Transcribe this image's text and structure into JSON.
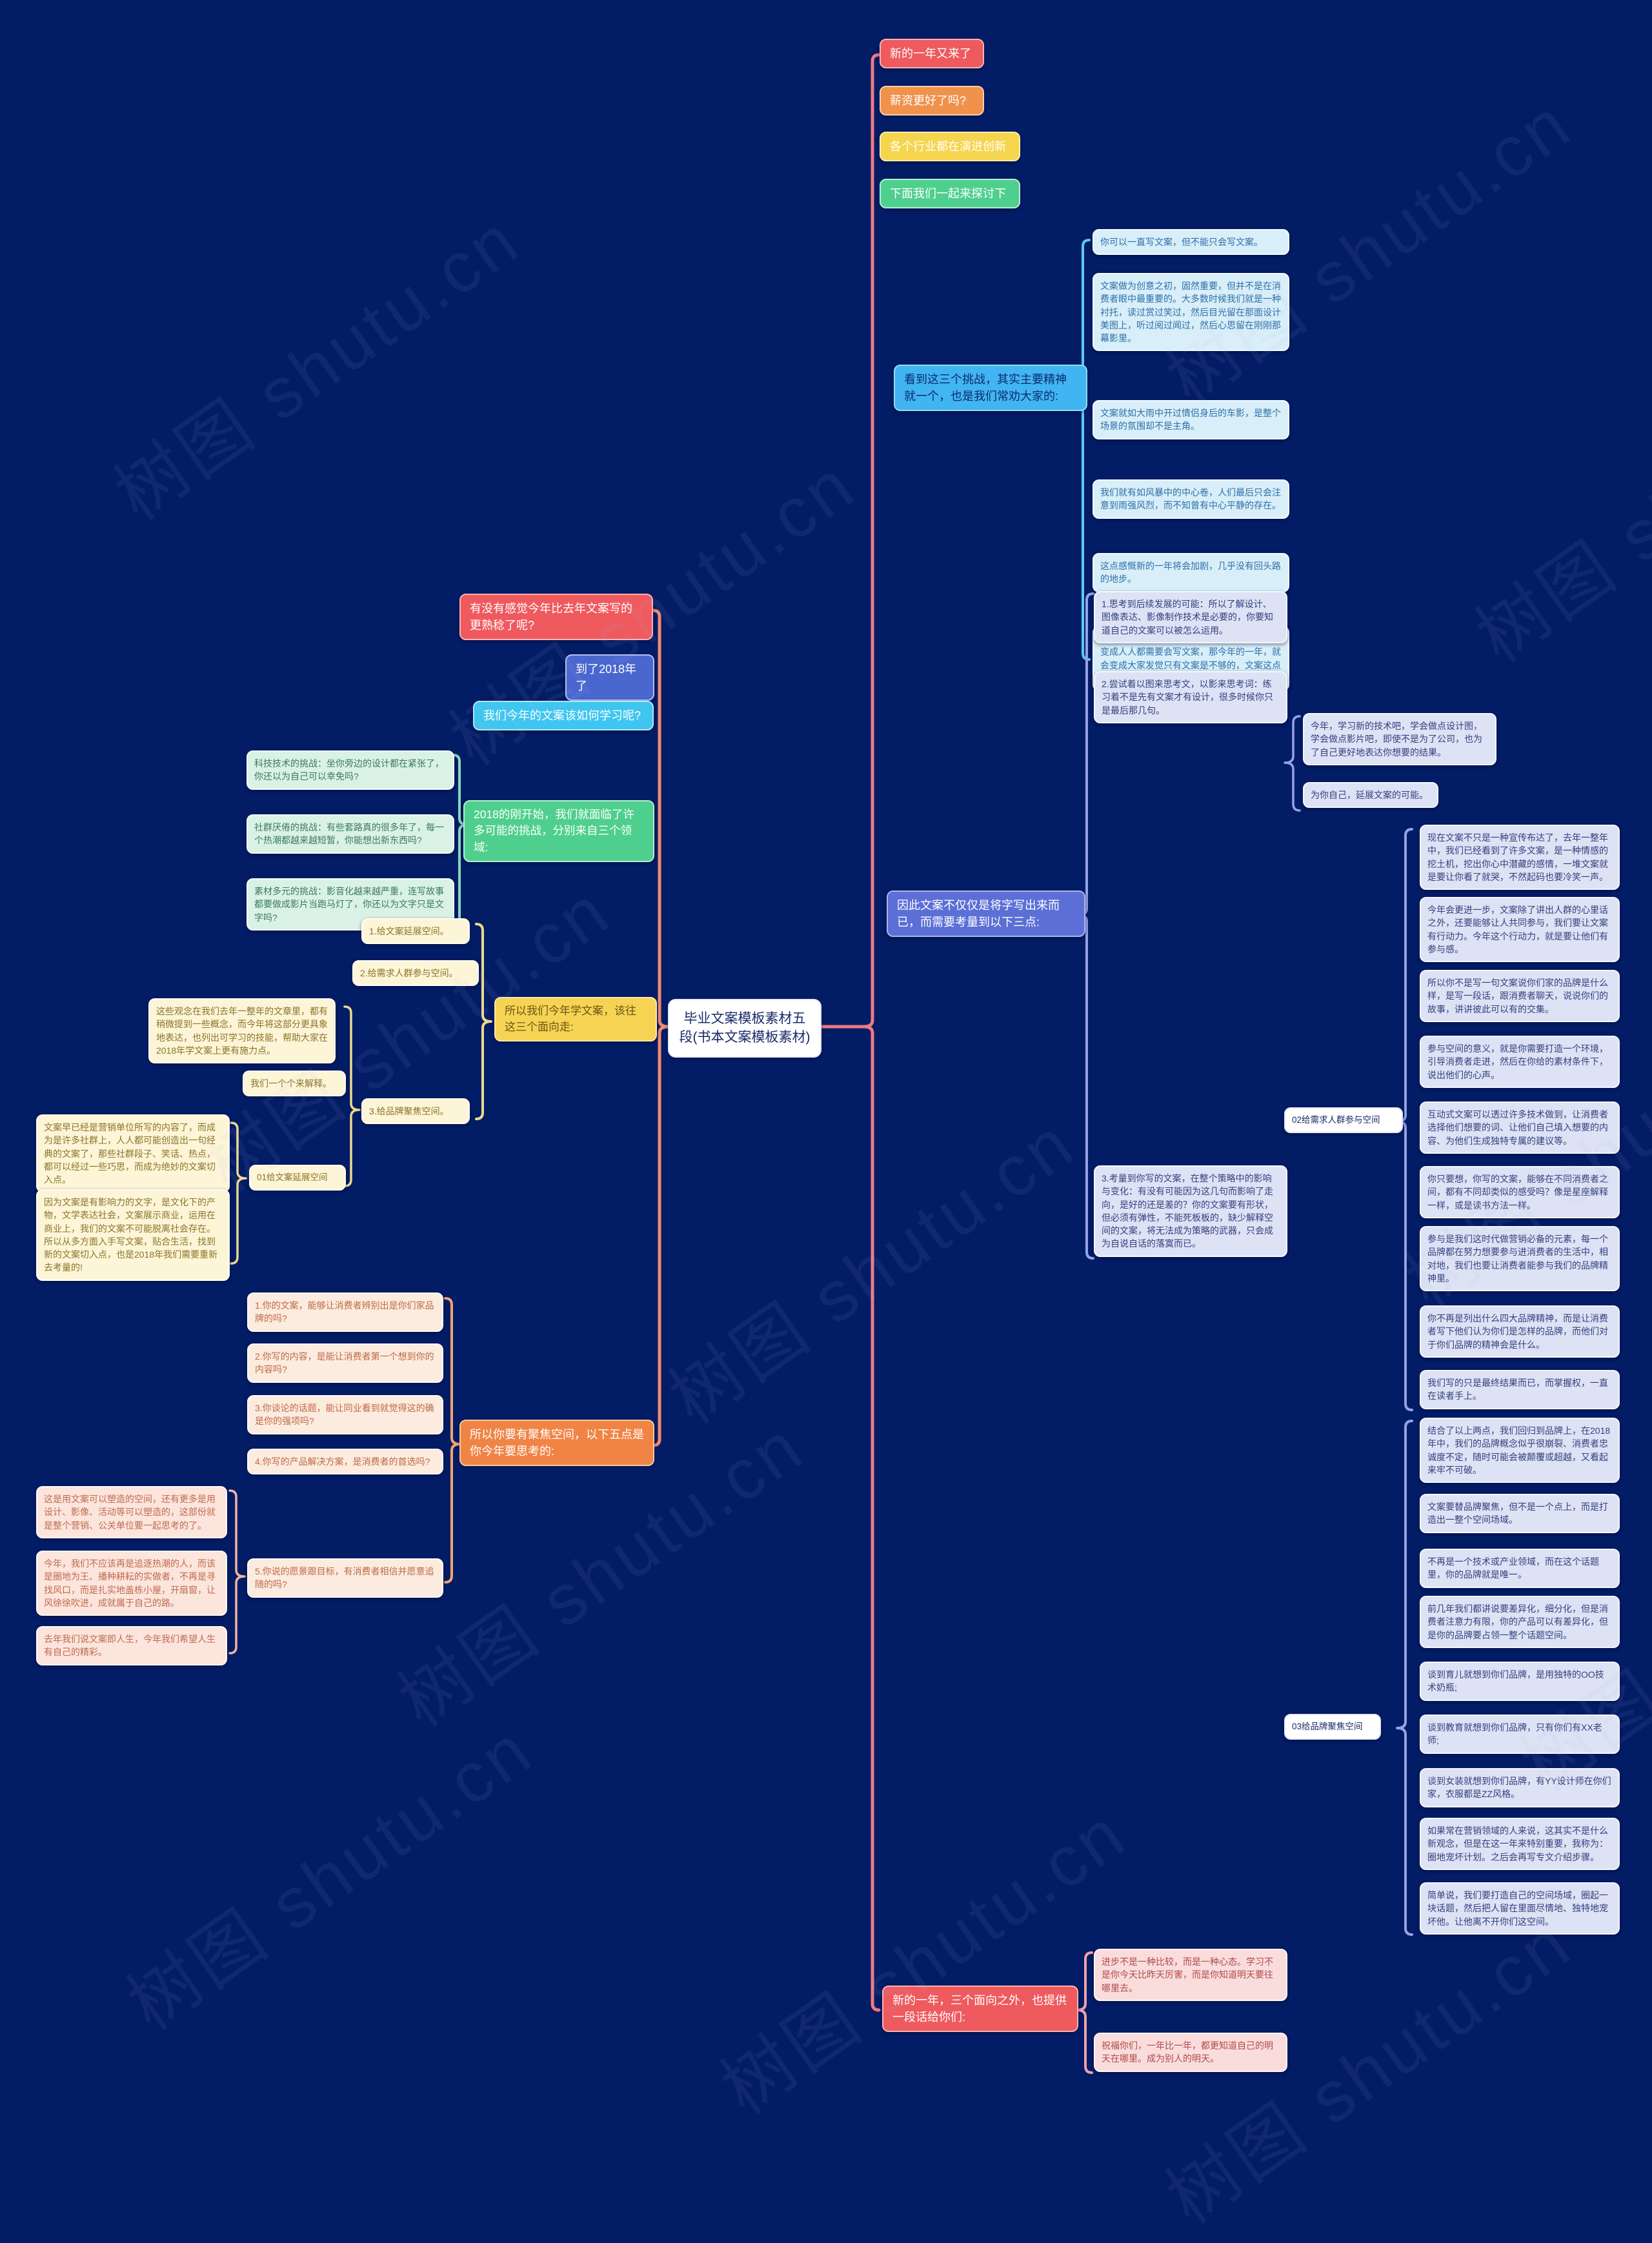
{
  "app": {
    "background": "#031c66",
    "watermark_text": "树图 shutu.cn"
  },
  "central": {
    "text": "毕业文案模板素材五段(书本文案模板素材)"
  },
  "palette": {
    "styles": {
      "red": {
        "bg": "#ee5a5e",
        "border": "#f9b3b3",
        "color": "#ffffff"
      },
      "orange": {
        "bg": "#f0914c",
        "border": "#f8d0a8",
        "color": "#ffffff"
      },
      "yellow": {
        "bg": "#f5d44e",
        "border": "#fbeeb0",
        "color": "#ffffff"
      },
      "green": {
        "bg": "#4fcf8d",
        "border": "#b5eed2",
        "color": "#ffffff"
      },
      "blueHdr": {
        "bg": "#41b5f2",
        "border": "#8edcf8",
        "color": "#0b2a6e"
      },
      "royal": {
        "bg": "#4a67d0",
        "border": "#b0c0f0",
        "color": "#ffffff"
      },
      "cyan": {
        "bg": "#3ec6f0",
        "border": "#b0e8f8",
        "color": "#ffffff"
      },
      "purple": {
        "bg": "#5b6fd6",
        "border": "#a8b4ee",
        "color": "#ffffff"
      },
      "yellowHdr": {
        "bg": "#f6d353",
        "border": "#fbe9a8",
        "color": "#6b5616"
      },
      "orangeHdr": {
        "bg": "#f08445",
        "border": "#f8c8a0",
        "color": "#ffffff"
      },
      "ltcyan": {
        "bg": "#d8eef8",
        "border": "#f2fbff",
        "color": "#2d6fa8"
      },
      "lav": {
        "bg": "#dde2f4",
        "border": "#f4f6fd",
        "color": "#333f7e"
      },
      "mint": {
        "bg": "#daf2e6",
        "border": "#f2fbf7",
        "color": "#38795f"
      },
      "cream": {
        "bg": "#fdf5d7",
        "border": "#fffdf2",
        "color": "#8a7428"
      },
      "pinkQ": {
        "bg": "#fcebdf",
        "border": "#fffaf6",
        "color": "#bf6a43"
      },
      "pinkR": {
        "bg": "#fbe5dc",
        "border": "#fff8f5",
        "color": "#c06a50"
      },
      "pinkS": {
        "bg": "#fadcdc",
        "border": "#fff6f6",
        "color": "#b04a4a"
      },
      "white": {
        "bg": "#ffffff",
        "border": "#e6e9f8",
        "color": "#1a2a6a"
      }
    },
    "braces": {
      "spine": "#ef7a80",
      "leftBig": "#ef8a70",
      "bB": "#5ec8f2",
      "bF": "#94a2e6",
      "bK": "#94a2e6",
      "bD": "#94a2e6",
      "bE": "#94a2e6",
      "bM": "#86d8c0",
      "bC": "#ecd98e",
      "bP": "#ecd98e",
      "bP34": "#ecd98e",
      "bQ": "#f0a472",
      "bR": "#f2b4a4",
      "bS": "#f2a0aa"
    }
  },
  "nodes": [
    {
      "id": "a1",
      "style": "red hdr",
      "text": "新的一年又来了"
    },
    {
      "id": "a2",
      "style": "orange hdr",
      "text": "薪资更好了吗?"
    },
    {
      "id": "a3",
      "style": "yellow hdr",
      "text": "各个行业都在演进创新"
    },
    {
      "id": "a4",
      "style": "green hdr",
      "text": "下面我们一起来探讨下"
    },
    {
      "id": "bh",
      "style": "blueHdr hdr",
      "text": "看到这三个挑战，其实主要精神就一个，也是我们常劝大家的:"
    },
    {
      "id": "b1",
      "style": "ltcyan",
      "text": "你可以一直写文案，但不能只会写文案。"
    },
    {
      "id": "b2",
      "style": "ltcyan",
      "text": "文案做为创意之初，固然重要，但并不是在消费者眼中最重要的。大多数时候我们就是一种衬托，读过赏过笑过，然后目光留在那面设计美图上，听过阅过闻过，然后心思留在刚刚那幕影里。"
    },
    {
      "id": "b3",
      "style": "ltcyan",
      "text": "文案就如大雨中开过情侣身后的车影，是整个场景的氛围却不是主角。"
    },
    {
      "id": "b4",
      "style": "ltcyan",
      "text": "我们就有如风暴中的中心卷，人们最后只会注意到雨强风烈，而不知曾有中心平静的存在。"
    },
    {
      "id": "b5",
      "style": "ltcyan",
      "text": "这点感慨新的一年将会加剧，几乎没有回头路的地步。"
    },
    {
      "id": "b6",
      "style": "ltcyan",
      "text": "如果说去年一年，是大家感受到文案的重要，变成人人都需要会写文案，那今年的一年，就会变成大家发觉只有文案是不够的，文案这点刺激已经无法满足消费者了。"
    },
    {
      "id": "ph",
      "style": "purple hdr",
      "text": "因此文案不仅仅是将字写出来而已，而需要考量到以下三点:"
    },
    {
      "id": "f1",
      "style": "lav",
      "text": "1.思考到后续发展的可能：所以了解设计、图像表达、影像制作技术是必要的，你要知道自己的文案可以被怎么运用。"
    },
    {
      "id": "f2",
      "style": "lav",
      "text": "2.尝试着以图来思考文，以影来思考词：练习着不是先有文案才有设计，很多时候你只是最后那几句。"
    },
    {
      "id": "k1",
      "style": "lav",
      "text": "今年，学习新的技术吧，学会做点设计图，学会做点影片吧，即使不是为了公司，也为了自己更好地表达你想要的结果。"
    },
    {
      "id": "k2",
      "style": "lav",
      "text": "为你自己，延展文案的可能。"
    },
    {
      "id": "f3",
      "style": "lav",
      "text": "3.考量到你写的文案，在整个策略中的影响与变化：有没有可能因为这几句而影响了走向，是好的还是差的？你的文案要有形状，但必须有弹性，不能死板板的，缺少解释空间的文案，将无法成为策略的武器，只会成为自说自话的落寞而已。"
    },
    {
      "id": "l02",
      "style": "white",
      "text": "02给需求人群参与空间"
    },
    {
      "id": "d1",
      "style": "lav",
      "text": "现在文案不只是一种宣传布达了，去年一整年中，我们已经看到了许多文案，是一种情感的挖土机，挖出你心中潜藏的感情，一堆文案就是要让你看了就哭，不然起码也要冷笑一声。"
    },
    {
      "id": "d2",
      "style": "lav",
      "text": "今年会更进一步，文案除了讲出人群的心里话之外，还要能够让人共同参与，我们要让文案有行动力。今年这个行动力，就是要让他们有参与感。"
    },
    {
      "id": "d3",
      "style": "lav",
      "text": "所以你不是写一句文案说你们家的品牌是什么样，是写一段话，跟消费者聊天，说说你们的故事，讲讲彼此可以有的交集。"
    },
    {
      "id": "d4",
      "style": "lav",
      "text": "参与空间的意义，就是你需要打造一个环境，引导消费者走进，然后在你给的素材条件下，说出他们的心声。"
    },
    {
      "id": "d5",
      "style": "lav",
      "text": "互动式文案可以透过许多技术做到，让消费者选择他们想要的词、让他们自己填入想要的内容、为他们生成独特专属的建议等。"
    },
    {
      "id": "d6",
      "style": "lav",
      "text": "你只要想，你写的文案，能够在不同消费者之间，都有不同却类似的感受吗？像是星座解释一样，或是读书方法一样。"
    },
    {
      "id": "d7",
      "style": "lav",
      "text": "参与是我们这时代做营销必备的元素，每一个品牌都在努力想要参与进消费者的生活中，相对地，我们也要让消费者能参与我们的品牌精神里。"
    },
    {
      "id": "d8",
      "style": "lav",
      "text": "你不再是列出什么四大品牌精神，而是让消费者写下他们认为你们是怎样的品牌，而他们对于你们品牌的精神会是什么。"
    },
    {
      "id": "d9",
      "style": "lav",
      "text": "我们写的只是最终结果而已，而掌握权，一直在读者手上。"
    },
    {
      "id": "l03",
      "style": "white",
      "text": "03给品牌聚焦空间"
    },
    {
      "id": "e1",
      "style": "lav",
      "text": "结合了以上两点，我们回归到品牌上，在2018年中，我们的品牌概念似乎很崩裂、消费者忠诚度不定，随时可能会被颠覆或超越，又看起来牢不可破。"
    },
    {
      "id": "e2",
      "style": "lav",
      "text": "文案要替品牌聚焦，但不是一个点上，而是打造出一整个空间场域。"
    },
    {
      "id": "e3",
      "style": "lav",
      "text": "不再是一个技术或产业领域，而在这个话题里，你的品牌就是唯一。"
    },
    {
      "id": "e4",
      "style": "lav",
      "text": "前几年我们都讲说要差异化，细分化，但是消费者注意力有限，你的产品可以有差异化，但是你的品牌要占领一整个话题空间。"
    },
    {
      "id": "e5",
      "style": "lav",
      "text": "谈到育儿就想到你们品牌，是用独特的OO技术奶瓶;"
    },
    {
      "id": "e6",
      "style": "lav",
      "text": "谈到教育就想到你们品牌，只有你们有XX老师;"
    },
    {
      "id": "e7",
      "style": "lav",
      "text": "谈到女装就想到你们品牌，有YY设计师在你们家，衣服都是ZZ风格。"
    },
    {
      "id": "e8",
      "style": "lav",
      "text": "如果常在营销领域的人来说，这其实不是什么新观念，但是在这一年来特别重要，我称为：圈地宠坏计划。之后会再写专文介绍步骤。"
    },
    {
      "id": "e9",
      "style": "lav",
      "text": "简单说，我们要打造自己的空间场域，圈起一块话题，然后把人留在里面尽情地、独特地宠坏他。让他离不开你们这空间。"
    },
    {
      "id": "g1",
      "style": "red hdr",
      "text": "有没有感觉今年比去年文案写的更熟稔了呢?"
    },
    {
      "id": "g2",
      "style": "royal hdr",
      "text": "到了2018年了"
    },
    {
      "id": "g3",
      "style": "cyan hdr",
      "text": "我们今年的文案该如何学习呢?"
    },
    {
      "id": "gh",
      "style": "green hdr",
      "text": "2018的刚开始，我们就面临了许多可能的挑战，分别来自三个领域:"
    },
    {
      "id": "m1",
      "style": "mint",
      "text": "科技技术的挑战：坐你旁边的设计都在紧张了，你还以为自己可以幸免吗?"
    },
    {
      "id": "m2",
      "style": "mint",
      "text": "社群厌倦的挑战：有些套路真的很多年了，每一个热潮都越来越短暂，你能想出新东西吗?"
    },
    {
      "id": "m3",
      "style": "mint",
      "text": "素材多元的挑战：影音化越来越严重，连写故事都要做成影片当跑马灯了，你还以为文字只是文字吗?"
    },
    {
      "id": "h1",
      "style": "yellowHdr hdr",
      "text": "所以我们今年学文案，该往这三个面向走:"
    },
    {
      "id": "c1",
      "style": "cream",
      "text": "1.给文案延展空间。"
    },
    {
      "id": "c2",
      "style": "cream",
      "text": "2.给需求人群参与空间。"
    },
    {
      "id": "c3",
      "style": "cream",
      "text": "3.给品牌聚焦空间。"
    },
    {
      "id": "p1",
      "style": "cream",
      "text": "这些观念在我们去年一整年的文章里，都有稍微提到一些概念，而今年将这部分更具象地表达，也列出可学习的技能，帮助大家在2018年学文案上更有施力点。"
    },
    {
      "id": "p2",
      "style": "cream",
      "text": "我们一个个来解释。"
    },
    {
      "id": "l01",
      "style": "cream",
      "text": "01给文案延展空间"
    },
    {
      "id": "p3",
      "style": "cream",
      "text": "文案早已经是营销单位所写的内容了，而成为是许多社群上，人人都可能创造出一句经典的文案了，那些社群段子、笑话、热点，都可以经过一些巧思，而成为绝妙的文案切入点。"
    },
    {
      "id": "p4",
      "style": "cream",
      "text": "因为文案是有影响力的文字，是文化下的产物，文学表达社会，文案展示商业，运用在商业上，我们的文案不可能脱离社会存在。所以从多方面入手写文案，贴合生活，找到新的文案切入点，也是2018年我们需要重新去考量的!"
    },
    {
      "id": "h2",
      "style": "orangeHdr hdr",
      "text": "所以你要有聚焦空间，以下五点是你今年要思考的:"
    },
    {
      "id": "q1",
      "style": "pinkQ",
      "text": "1.你的文案，能够让消费者辨别出是你们家品牌的吗?"
    },
    {
      "id": "q2",
      "style": "pinkQ",
      "text": "2.你写的内容，是能让消费者第一个想到你的内容吗?"
    },
    {
      "id": "q3",
      "style": "pinkQ",
      "text": "3.你谈论的话题，能让同业看到就觉得这的确是你的强项吗?"
    },
    {
      "id": "q4",
      "style": "pinkQ",
      "text": "4.你写的产品解决方案，是消费者的首选吗?"
    },
    {
      "id": "q5",
      "style": "pinkQ",
      "text": "5.你说的愿景跟目标，有消费者相信并愿意追随的吗?"
    },
    {
      "id": "r1",
      "style": "pinkR",
      "text": "这是用文案可以塑造的空间，还有更多是用设计、影像、活动等可以塑造的，这部份就是整个营销、公关单位要一起思考的了。"
    },
    {
      "id": "r2",
      "style": "pinkR",
      "text": "今年，我们不应该再是追逐热潮的人，而该是圈地为王、播种耕耘的实做者，不再是寻找风口，而是扎实地盖栋小屋，开扇窗，让风徐徐吹进，成就属于自己的路。"
    },
    {
      "id": "r3",
      "style": "pinkR",
      "text": "去年我们说文案即人生，今年我们希望人生有自己的精彩。"
    },
    {
      "id": "h3",
      "style": "red hdr",
      "text": "新的一年，三个面向之外，也提供一段话给你们:"
    },
    {
      "id": "s1",
      "style": "pinkS",
      "text": "进步不是一种比较，而是一种心态。学习不是你今天比昨天厉害，而是你知道明天要往哪里去。"
    },
    {
      "id": "s2",
      "style": "pinkS",
      "text": "祝福你们，一年比一年，都更知道自己的明天在哪里。成为别人的明天。"
    }
  ]
}
